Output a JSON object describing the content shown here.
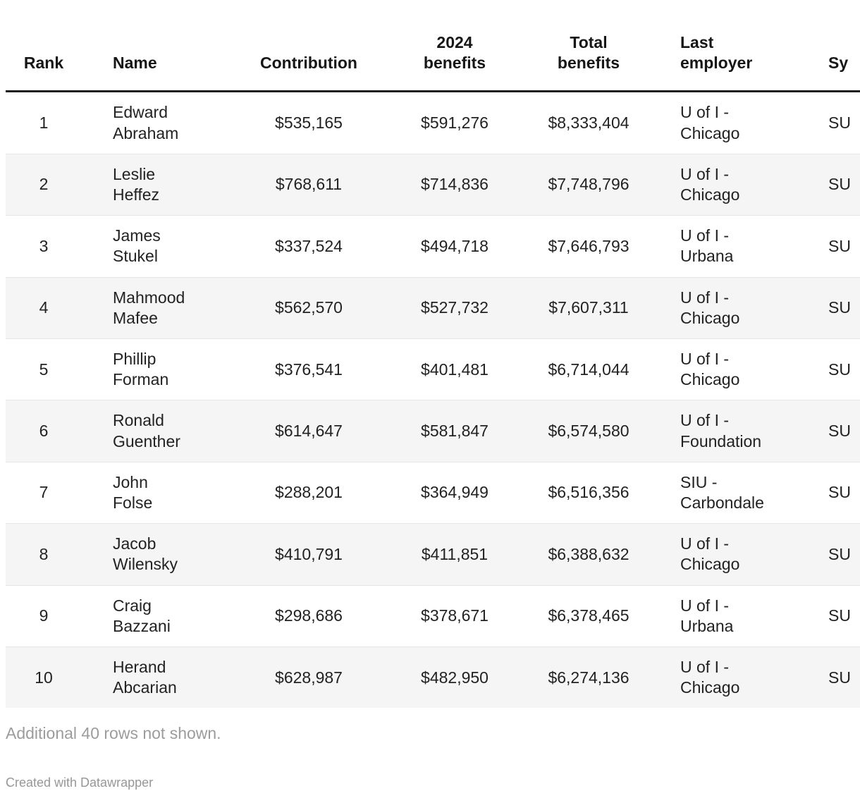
{
  "chart_data": {
    "type": "table",
    "columns": [
      {
        "label": "Rank",
        "align": "center"
      },
      {
        "label": "Name",
        "align": "left"
      },
      {
        "label": "Contribution",
        "align": "center"
      },
      {
        "label": "2024\nbenefits",
        "align": "center"
      },
      {
        "label": "Total\nbenefits",
        "align": "center"
      },
      {
        "label": "Last\nemployer",
        "align": "left"
      },
      {
        "label": "Sy",
        "align": "left"
      }
    ],
    "rows": [
      {
        "rank": "1",
        "name": "Edward\nAbraham",
        "contribution": "$535,165",
        "benefits_2024": "$591,276",
        "total_benefits": "$8,333,404",
        "last_employer": "U of I -\nChicago",
        "system": "SU"
      },
      {
        "rank": "2",
        "name": "Leslie\nHeffez",
        "contribution": "$768,611",
        "benefits_2024": "$714,836",
        "total_benefits": "$7,748,796",
        "last_employer": "U of I -\nChicago",
        "system": "SU"
      },
      {
        "rank": "3",
        "name": "James\nStukel",
        "contribution": "$337,524",
        "benefits_2024": "$494,718",
        "total_benefits": "$7,646,793",
        "last_employer": "U of I -\nUrbana",
        "system": "SU"
      },
      {
        "rank": "4",
        "name": "Mahmood\nMafee",
        "contribution": "$562,570",
        "benefits_2024": "$527,732",
        "total_benefits": "$7,607,311",
        "last_employer": "U of I -\nChicago",
        "system": "SU"
      },
      {
        "rank": "5",
        "name": "Phillip\nForman",
        "contribution": "$376,541",
        "benefits_2024": "$401,481",
        "total_benefits": "$6,714,044",
        "last_employer": "U of I -\nChicago",
        "system": "SU"
      },
      {
        "rank": "6",
        "name": "Ronald\nGuenther",
        "contribution": "$614,647",
        "benefits_2024": "$581,847",
        "total_benefits": "$6,574,580",
        "last_employer": "U of I -\nFoundation",
        "system": "SU"
      },
      {
        "rank": "7",
        "name": "John\nFolse",
        "contribution": "$288,201",
        "benefits_2024": "$364,949",
        "total_benefits": "$6,516,356",
        "last_employer": "SIU -\nCarbondale",
        "system": "SU"
      },
      {
        "rank": "8",
        "name": "Jacob\nWilensky",
        "contribution": "$410,791",
        "benefits_2024": "$411,851",
        "total_benefits": "$6,388,632",
        "last_employer": "U of I -\nChicago",
        "system": "SU"
      },
      {
        "rank": "9",
        "name": "Craig\nBazzani",
        "contribution": "$298,686",
        "benefits_2024": "$378,671",
        "total_benefits": "$6,378,465",
        "last_employer": "U of I -\nUrbana",
        "system": "SU"
      },
      {
        "rank": "10",
        "name": "Herand\nAbcarian",
        "contribution": "$628,987",
        "benefits_2024": "$482,950",
        "total_benefits": "$6,274,136",
        "last_employer": "U of I -\nChicago",
        "system": "SU"
      }
    ]
  },
  "footer": {
    "note": "Additional 40 rows not shown.",
    "attribution": "Created with Datawrapper"
  },
  "colors": {
    "header_text": "#161616",
    "body_text": "#222222",
    "zebra_stripe": "#f5f5f5",
    "header_rule": "#1d1d1d",
    "row_rule": "#e6e6e6",
    "muted_text": "#9c9c9c"
  }
}
